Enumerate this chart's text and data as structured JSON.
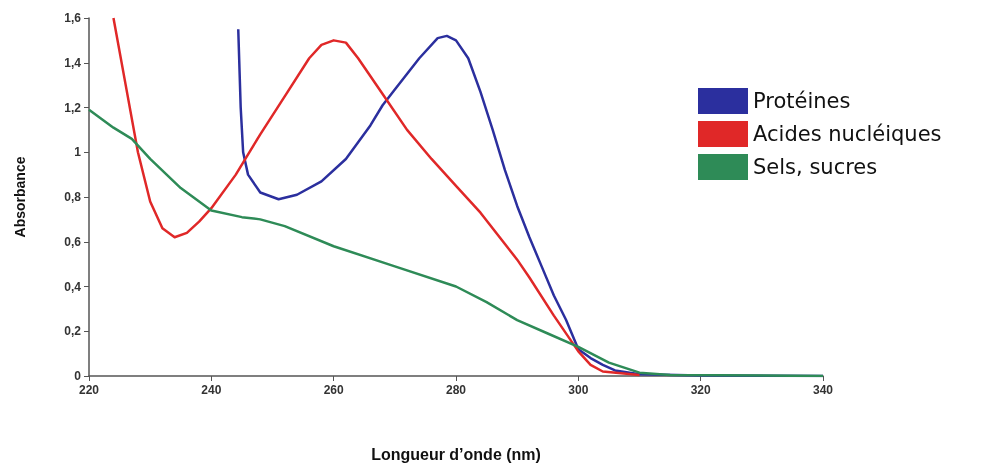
{
  "chart_data": {
    "type": "line",
    "xlabel": "Longueur d’onde (nm)",
    "ylabel": "Absorbance",
    "xlim": [
      220,
      340
    ],
    "xticks": [
      220,
      240,
      260,
      280,
      300,
      320,
      340
    ],
    "ylim": [
      0,
      1.6
    ],
    "yticks": [
      0,
      {
        "value": 0.2,
        "label": "0,2"
      },
      {
        "value": 0.4,
        "label": "0,4"
      },
      {
        "value": 0.6,
        "label": "0,6"
      },
      {
        "value": 0.8,
        "label": "0,8"
      },
      1,
      {
        "value": 1.2,
        "label": "1,2"
      },
      {
        "value": 1.4,
        "label": "1,4"
      },
      {
        "value": 1.6,
        "label": "1,6"
      }
    ],
    "grid": false,
    "legend": "top right",
    "marker": "none",
    "line_style": "solid",
    "series": [
      {
        "name": "Protéines",
        "color": "#2b2f9e",
        "x": [
          244.4,
          244.8,
          245.2,
          246,
          248,
          251,
          254,
          258,
          262,
          266,
          268,
          270,
          274,
          277,
          278.5,
          280,
          282,
          284,
          286,
          288,
          290,
          292,
          294,
          296,
          298,
          300,
          302,
          304,
          306,
          310,
          320,
          340
        ],
        "values": [
          1.55,
          1.2,
          1.0,
          0.9,
          0.82,
          0.79,
          0.81,
          0.87,
          0.97,
          1.12,
          1.21,
          1.28,
          1.42,
          1.51,
          1.52,
          1.5,
          1.42,
          1.27,
          1.1,
          0.92,
          0.76,
          0.62,
          0.49,
          0.36,
          0.25,
          0.12,
          0.08,
          0.05,
          0.025,
          0.008,
          0.002,
          0
        ]
      },
      {
        "name": "Acides nucléiques",
        "color": "#e02828",
        "x": [
          224,
          226,
          228,
          230,
          232,
          234,
          236,
          238,
          240,
          244,
          248,
          252,
          256,
          258,
          260,
          262,
          264,
          268,
          272,
          276,
          280,
          284,
          288,
          290,
          292,
          296,
          300,
          302,
          304,
          310
        ],
        "values": [
          1.6,
          1.3,
          1.0,
          0.78,
          0.66,
          0.62,
          0.64,
          0.69,
          0.75,
          0.9,
          1.08,
          1.25,
          1.42,
          1.48,
          1.5,
          1.49,
          1.42,
          1.26,
          1.1,
          0.97,
          0.85,
          0.73,
          0.59,
          0.52,
          0.44,
          0.27,
          0.11,
          0.05,
          0.02,
          0.005
        ]
      },
      {
        "name": "Sels, sucres",
        "color": "#2e8b57",
        "x": [
          220,
          224,
          227,
          230,
          235,
          240,
          245,
          248,
          252,
          260,
          270,
          280,
          285,
          290,
          295,
          300,
          305,
          310,
          315,
          340
        ],
        "values": [
          1.19,
          1.11,
          1.06,
          0.97,
          0.84,
          0.74,
          0.71,
          0.7,
          0.67,
          0.58,
          0.49,
          0.4,
          0.33,
          0.25,
          0.19,
          0.13,
          0.06,
          0.015,
          0.005,
          0
        ]
      }
    ]
  }
}
